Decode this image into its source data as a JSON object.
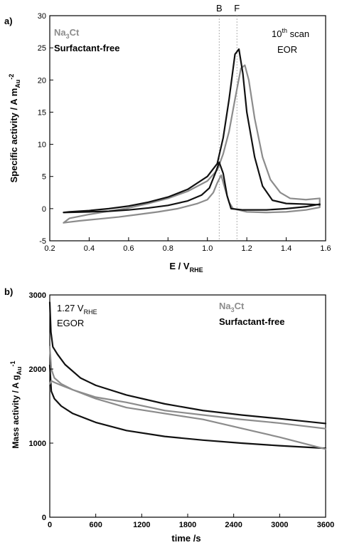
{
  "panels": {
    "a": {
      "panel_label": "a)",
      "legend": {
        "line1_base": "Na",
        "line1_sub": "3",
        "line1_tail": "Ct",
        "line2": "Surfactant-free"
      },
      "corner": {
        "scan_num": "10",
        "scan_sup": "th",
        "scan_word": " scan",
        "reaction": "EOR"
      },
      "markers": {
        "B": "B",
        "F": "F"
      },
      "xlabel": {
        "base": "E / V",
        "sub": "RHE"
      },
      "ylabel": {
        "base": "Specific activity / A m",
        "sub": "Au",
        "sup": "-2"
      }
    },
    "b": {
      "panel_label": "b)",
      "legend": {
        "line1_base": "Na",
        "line1_sub": "3",
        "line1_tail": "Ct",
        "line2": "Surfactant-free"
      },
      "corner": {
        "potential_base": "1.27 V",
        "potential_sub": "RHE",
        "reaction": "EGOR"
      },
      "xlabel": {
        "base": "time /s"
      },
      "ylabel": {
        "base": "Mass activity / A g",
        "sub": "Au",
        "sup": "-1"
      }
    }
  },
  "chart_data": [
    {
      "type": "line",
      "panel": "a",
      "xlim": [
        0.2,
        1.6
      ],
      "ylim": [
        -5,
        30
      ],
      "xticks": [
        0.2,
        0.4,
        0.6,
        0.8,
        1.0,
        1.2,
        1.4,
        1.6
      ],
      "yticks": [
        -5,
        0,
        5,
        10,
        15,
        20,
        25,
        30
      ],
      "vlines": [
        {
          "label": "B",
          "x": 1.06
        },
        {
          "label": "F",
          "x": 1.15
        }
      ],
      "colors": {
        "Na3Ct": "#8c8c8c",
        "Surfactant-free": "#111111",
        "vline": "#b0b0b0"
      },
      "series": [
        {
          "name": "Na3Ct",
          "points": [
            [
              0.27,
              -2.2
            ],
            [
              0.35,
              -1.9
            ],
            [
              0.45,
              -1.6
            ],
            [
              0.55,
              -1.3
            ],
            [
              0.65,
              -0.9
            ],
            [
              0.75,
              -0.5
            ],
            [
              0.85,
              0.0
            ],
            [
              0.95,
              0.8
            ],
            [
              1.0,
              1.4
            ],
            [
              1.03,
              2.5
            ],
            [
              1.05,
              4.0
            ],
            [
              1.07,
              5.2
            ],
            [
              1.09,
              3.0
            ],
            [
              1.11,
              1.0
            ],
            [
              1.13,
              0.0
            ],
            [
              1.2,
              -0.5
            ],
            [
              1.3,
              -0.6
            ],
            [
              1.4,
              -0.5
            ],
            [
              1.5,
              -0.2
            ],
            [
              1.57,
              0.2
            ],
            [
              1.57,
              1.6
            ],
            [
              1.5,
              1.4
            ],
            [
              1.42,
              1.6
            ],
            [
              1.37,
              2.5
            ],
            [
              1.32,
              4.5
            ],
            [
              1.28,
              8.0
            ],
            [
              1.24,
              14.0
            ],
            [
              1.21,
              20.0
            ],
            [
              1.19,
              22.3
            ],
            [
              1.17,
              21.8
            ],
            [
              1.14,
              17.0
            ],
            [
              1.11,
              12.0
            ],
            [
              1.08,
              8.5
            ],
            [
              1.05,
              6.0
            ],
            [
              1.0,
              4.3
            ],
            [
              0.9,
              2.7
            ],
            [
              0.8,
              1.6
            ],
            [
              0.7,
              0.8
            ],
            [
              0.6,
              0.1
            ],
            [
              0.5,
              -0.4
            ],
            [
              0.4,
              -0.9
            ],
            [
              0.3,
              -1.5
            ],
            [
              0.27,
              -2.2
            ]
          ]
        },
        {
          "name": "Surfactant-free",
          "points": [
            [
              0.27,
              -0.6
            ],
            [
              0.4,
              -0.5
            ],
            [
              0.5,
              -0.4
            ],
            [
              0.6,
              -0.2
            ],
            [
              0.7,
              0.1
            ],
            [
              0.8,
              0.5
            ],
            [
              0.9,
              1.2
            ],
            [
              0.97,
              2.1
            ],
            [
              1.01,
              3.2
            ],
            [
              1.04,
              5.5
            ],
            [
              1.06,
              7.2
            ],
            [
              1.08,
              5.5
            ],
            [
              1.1,
              2.0
            ],
            [
              1.12,
              0.0
            ],
            [
              1.18,
              -0.2
            ],
            [
              1.3,
              -0.2
            ],
            [
              1.4,
              0.0
            ],
            [
              1.5,
              0.3
            ],
            [
              1.57,
              0.7
            ],
            [
              1.57,
              0.6
            ],
            [
              1.5,
              0.7
            ],
            [
              1.4,
              0.8
            ],
            [
              1.33,
              1.3
            ],
            [
              1.28,
              3.5
            ],
            [
              1.24,
              8.0
            ],
            [
              1.2,
              15.0
            ],
            [
              1.18,
              21.0
            ],
            [
              1.16,
              24.8
            ],
            [
              1.14,
              24.0
            ],
            [
              1.11,
              17.0
            ],
            [
              1.08,
              11.0
            ],
            [
              1.05,
              7.0
            ],
            [
              1.0,
              5.0
            ],
            [
              0.9,
              3.0
            ],
            [
              0.8,
              1.8
            ],
            [
              0.7,
              1.0
            ],
            [
              0.6,
              0.4
            ],
            [
              0.5,
              0.0
            ],
            [
              0.4,
              -0.3
            ],
            [
              0.3,
              -0.5
            ],
            [
              0.27,
              -0.6
            ]
          ]
        }
      ]
    },
    {
      "type": "line",
      "panel": "b",
      "xlim": [
        0,
        3600
      ],
      "ylim": [
        0,
        3000
      ],
      "xticks": [
        0,
        600,
        1200,
        1800,
        2400,
        3000,
        3600
      ],
      "yticks": [
        0,
        1000,
        2000,
        3000
      ],
      "colors": {
        "Na3Ct": "#8c8c8c",
        "Surfactant-free": "#111111"
      },
      "series": [
        {
          "name": "Surfactant-free (upper)",
          "points": [
            [
              0,
              2900
            ],
            [
              15,
              2500
            ],
            [
              40,
              2300
            ],
            [
              100,
              2200
            ],
            [
              200,
              2060
            ],
            [
              400,
              1880
            ],
            [
              600,
              1780
            ],
            [
              1000,
              1650
            ],
            [
              1500,
              1530
            ],
            [
              2000,
              1440
            ],
            [
              2500,
              1380
            ],
            [
              3000,
              1330
            ],
            [
              3600,
              1265
            ]
          ]
        },
        {
          "name": "Surfactant-free (lower)",
          "points": [
            [
              0,
              2050
            ],
            [
              20,
              1700
            ],
            [
              60,
              1600
            ],
            [
              150,
              1500
            ],
            [
              300,
              1400
            ],
            [
              600,
              1280
            ],
            [
              1000,
              1170
            ],
            [
              1500,
              1090
            ],
            [
              2000,
              1040
            ],
            [
              2500,
              1000
            ],
            [
              3000,
              965
            ],
            [
              3600,
              930
            ]
          ]
        },
        {
          "name": "Na3Ct (upper)",
          "points": [
            [
              0,
              2300
            ],
            [
              20,
              2000
            ],
            [
              60,
              1880
            ],
            [
              150,
              1800
            ],
            [
              300,
              1720
            ],
            [
              600,
              1620
            ],
            [
              1000,
              1550
            ],
            [
              1500,
              1440
            ],
            [
              2000,
              1380
            ],
            [
              2500,
              1320
            ],
            [
              3000,
              1270
            ],
            [
              3600,
              1195
            ]
          ]
        },
        {
          "name": "Na3Ct (lower)",
          "points": [
            [
              0,
              1800
            ],
            [
              20,
              1840
            ],
            [
              60,
              1820
            ],
            [
              150,
              1780
            ],
            [
              300,
              1720
            ],
            [
              600,
              1600
            ],
            [
              1000,
              1480
            ],
            [
              1500,
              1400
            ],
            [
              2000,
              1320
            ],
            [
              2500,
              1200
            ],
            [
              3000,
              1080
            ],
            [
              3600,
              920
            ]
          ]
        }
      ]
    }
  ]
}
